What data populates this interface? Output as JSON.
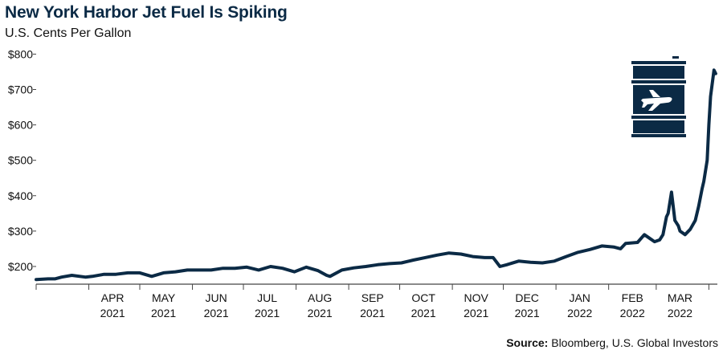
{
  "header": {
    "title": "New York Harbor Jet Fuel Is Spiking",
    "subtitle": "U.S. Cents Per Gallon"
  },
  "footer": {
    "source_label": "Source:",
    "source_text": " Bloomberg, U.S. Global Investors"
  },
  "icon": {
    "name": "jet-fuel-barrel-icon"
  },
  "colors": {
    "line": "#0b2a45",
    "axis": "#444444"
  },
  "chart_data": {
    "type": "line",
    "title": "New York Harbor Jet Fuel Is Spiking",
    "subtitle": "U.S. Cents Per Gallon",
    "xlabel": "",
    "ylabel": "",
    "xlim": [
      "2021-03-01",
      "2022-04-06"
    ],
    "ylim": [
      150,
      810
    ],
    "grid": false,
    "y_ticks": [
      {
        "value": 200,
        "label": "$200"
      },
      {
        "value": 300,
        "label": "$300"
      },
      {
        "value": 400,
        "label": "$400"
      },
      {
        "value": 500,
        "label": "$500"
      },
      {
        "value": 600,
        "label": "$600"
      },
      {
        "value": 700,
        "label": "$700"
      },
      {
        "value": 800,
        "label": "$800"
      }
    ],
    "x_tick_dates": [
      "2021-03-01",
      "2021-04-01",
      "2021-05-01",
      "2021-06-01",
      "2021-07-01",
      "2021-08-01",
      "2021-09-01",
      "2021-10-01",
      "2021-11-01",
      "2021-12-01",
      "2022-01-01",
      "2022-02-01",
      "2022-03-01",
      "2022-04-01"
    ],
    "x_labels": [
      {
        "date": "2021-04-15",
        "month": "APR",
        "year": "2021"
      },
      {
        "date": "2021-05-15",
        "month": "MAY",
        "year": "2021"
      },
      {
        "date": "2021-06-15",
        "month": "JUN",
        "year": "2021"
      },
      {
        "date": "2021-07-15",
        "month": "JUL",
        "year": "2021"
      },
      {
        "date": "2021-08-15",
        "month": "AUG",
        "year": "2021"
      },
      {
        "date": "2021-09-15",
        "month": "SEP",
        "year": "2021"
      },
      {
        "date": "2021-10-15",
        "month": "OCT",
        "year": "2021"
      },
      {
        "date": "2021-11-15",
        "month": "NOV",
        "year": "2021"
      },
      {
        "date": "2021-12-15",
        "month": "DEC",
        "year": "2021"
      },
      {
        "date": "2022-01-15",
        "month": "JAN",
        "year": "2022"
      },
      {
        "date": "2022-02-15",
        "month": "FEB",
        "year": "2022"
      },
      {
        "date": "2022-03-15",
        "month": "MAR",
        "year": "2022"
      }
    ],
    "series": [
      {
        "x": [
          "2021-03-01",
          "2021-03-08",
          "2021-03-12",
          "2021-03-16",
          "2021-03-22",
          "2021-03-30",
          "2021-04-03",
          "2021-04-10",
          "2021-04-17",
          "2021-04-24",
          "2021-05-01",
          "2021-05-08",
          "2021-05-15",
          "2021-05-22",
          "2021-05-29",
          "2021-06-05",
          "2021-06-12",
          "2021-06-19",
          "2021-06-26",
          "2021-07-03",
          "2021-07-10",
          "2021-07-17",
          "2021-07-24",
          "2021-07-31",
          "2021-08-07",
          "2021-08-14",
          "2021-08-19",
          "2021-08-21",
          "2021-08-28",
          "2021-09-04",
          "2021-09-11",
          "2021-09-18",
          "2021-09-25",
          "2021-10-02",
          "2021-10-09",
          "2021-10-16",
          "2021-10-23",
          "2021-10-30",
          "2021-11-06",
          "2021-11-13",
          "2021-11-20",
          "2021-11-25",
          "2021-11-29",
          "2021-12-03",
          "2021-12-10",
          "2021-12-17",
          "2021-12-24",
          "2021-12-31",
          "2022-01-07",
          "2022-01-14",
          "2022-01-21",
          "2022-01-28",
          "2022-02-04",
          "2022-02-08",
          "2022-02-11",
          "2022-02-18",
          "2022-02-22",
          "2022-02-25",
          "2022-02-28",
          "2022-03-03",
          "2022-03-05",
          "2022-03-07",
          "2022-03-08",
          "2022-03-10",
          "2022-03-12",
          "2022-03-14",
          "2022-03-15",
          "2022-03-18",
          "2022-03-21",
          "2022-03-24",
          "2022-03-26",
          "2022-03-28",
          "2022-03-29",
          "2022-03-31",
          "2022-04-01",
          "2022-04-02",
          "2022-04-04",
          "2022-04-05"
        ],
        "y": [
          163,
          165,
          165,
          170,
          175,
          170,
          172,
          178,
          178,
          182,
          182,
          172,
          182,
          185,
          190,
          190,
          190,
          195,
          195,
          198,
          190,
          200,
          195,
          185,
          198,
          188,
          175,
          172,
          190,
          196,
          200,
          205,
          208,
          210,
          218,
          225,
          232,
          238,
          235,
          228,
          225,
          225,
          200,
          205,
          215,
          212,
          210,
          215,
          228,
          240,
          248,
          258,
          255,
          250,
          265,
          268,
          290,
          280,
          270,
          275,
          290,
          340,
          350,
          410,
          330,
          315,
          300,
          290,
          305,
          330,
          370,
          420,
          440,
          500,
          600,
          680,
          755,
          745
        ]
      }
    ]
  }
}
